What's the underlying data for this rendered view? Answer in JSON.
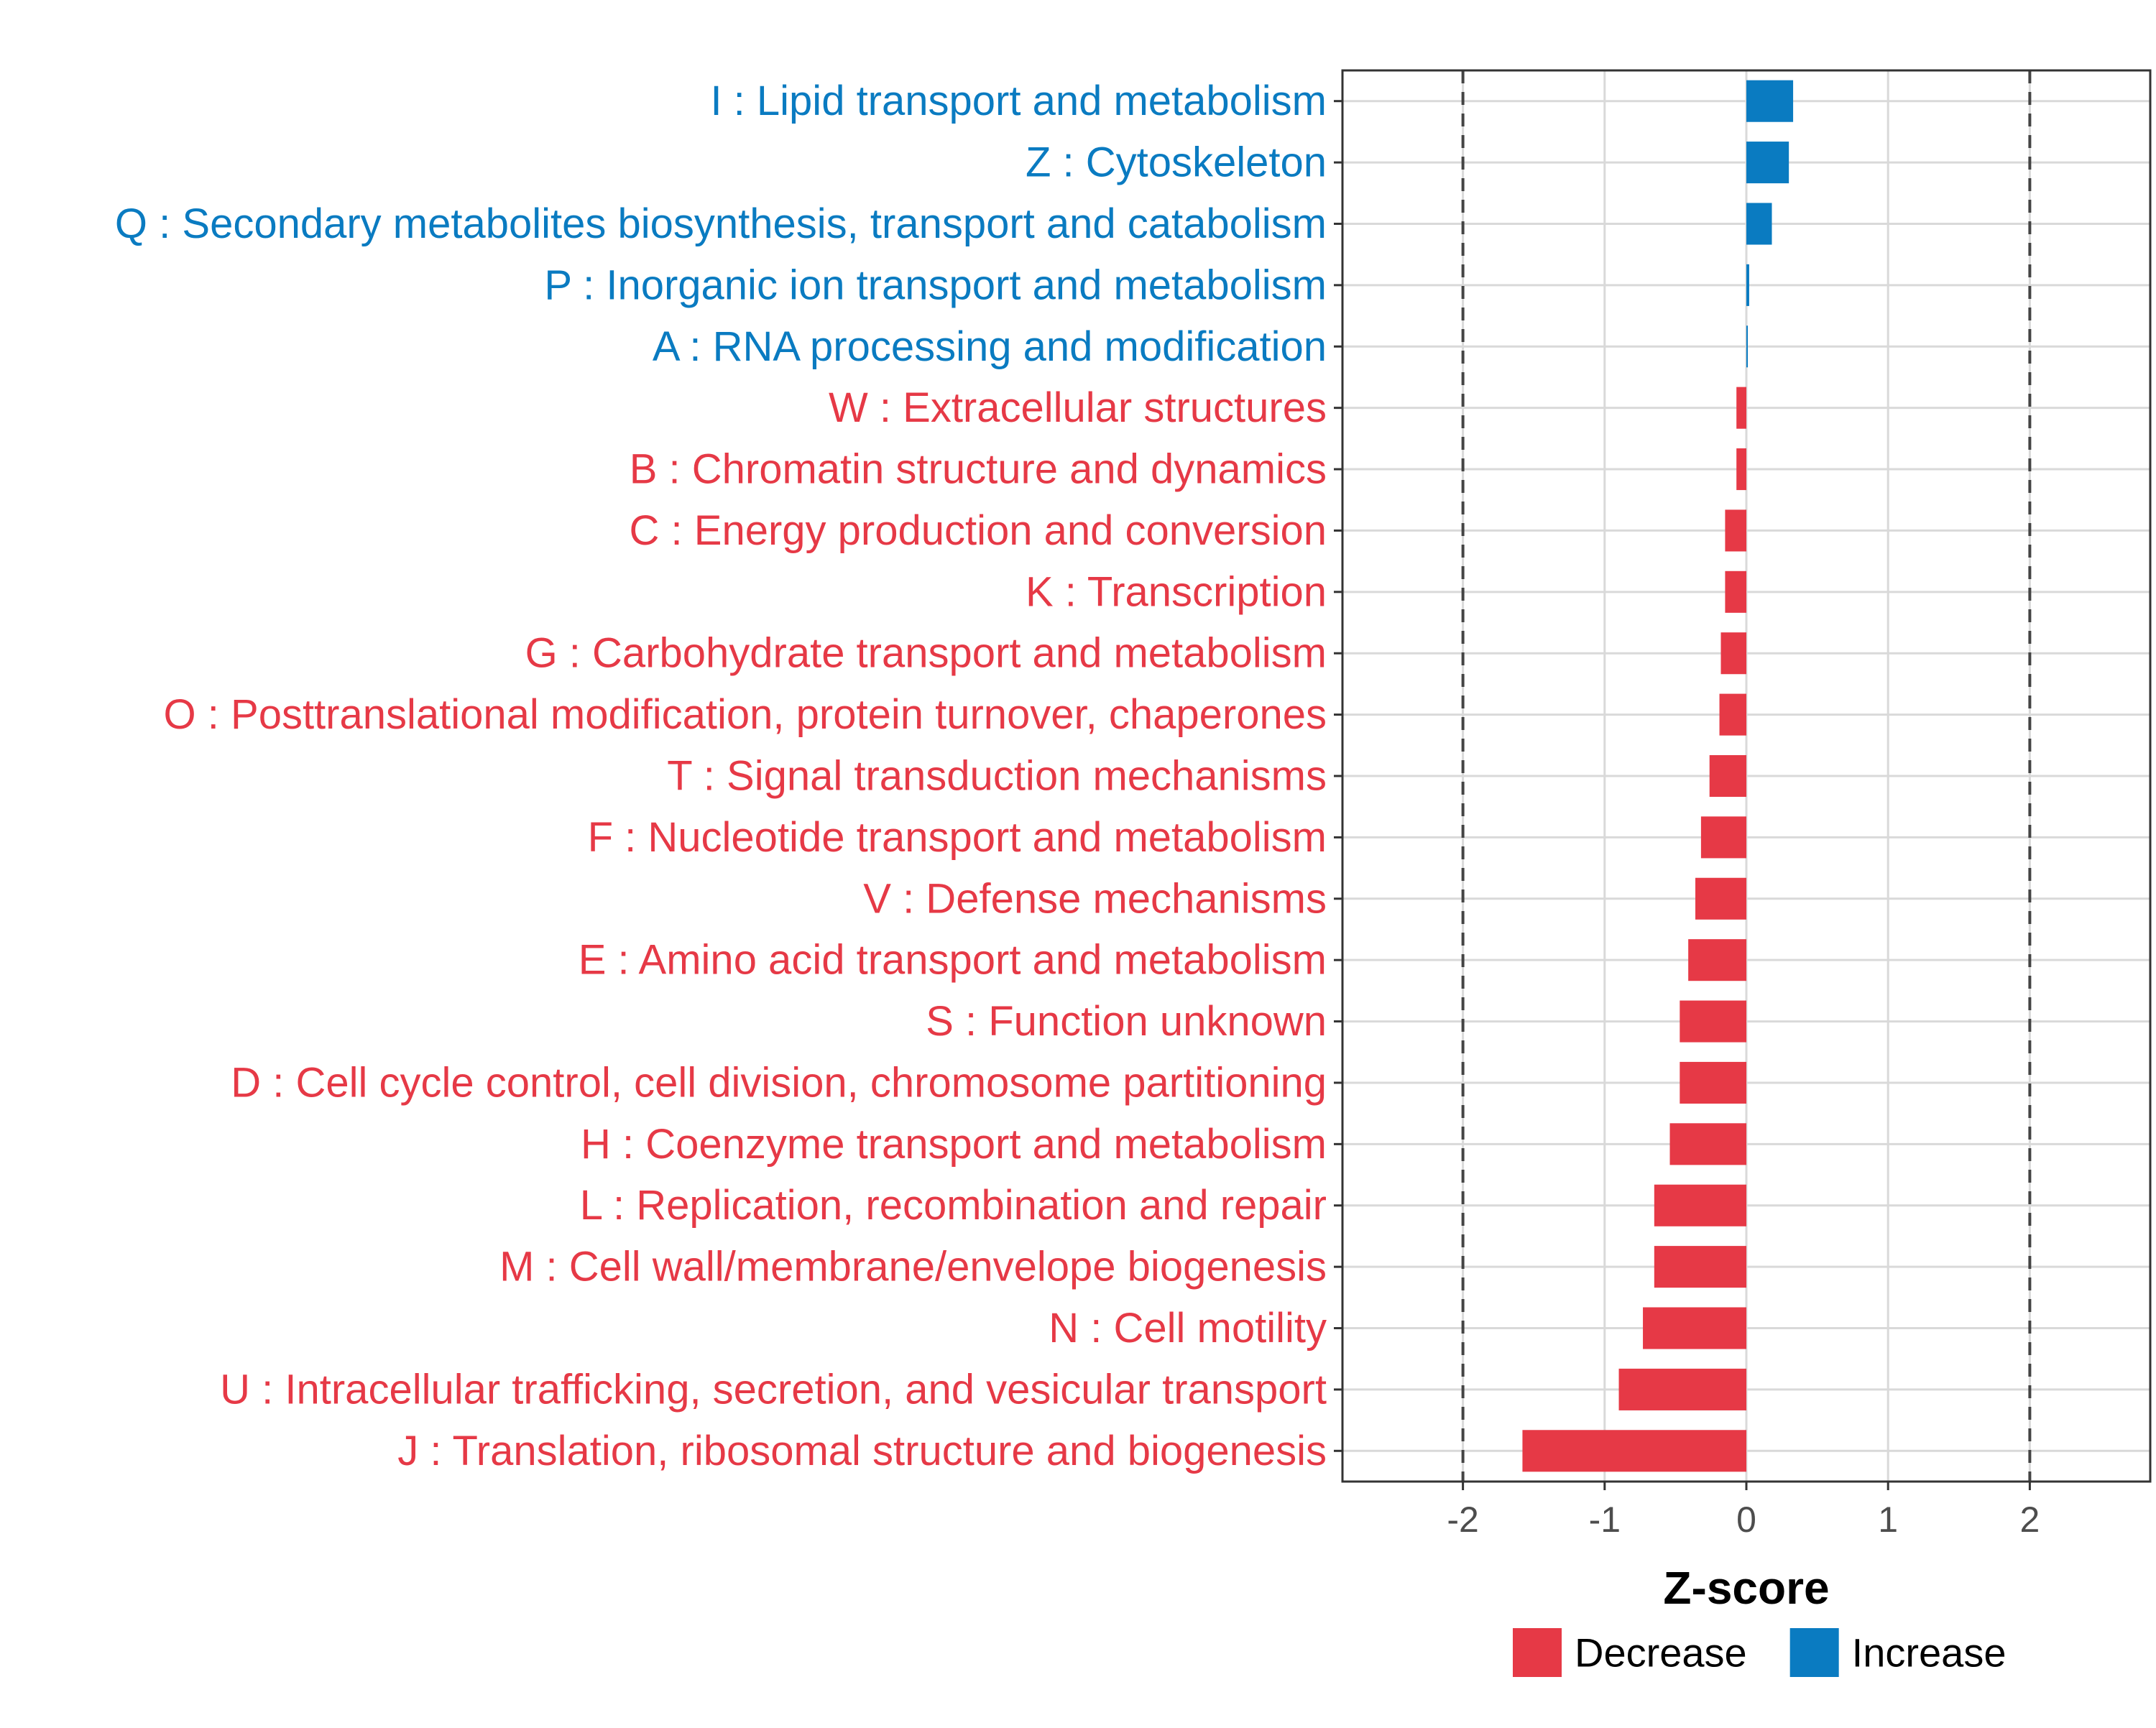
{
  "chart_data": {
    "type": "bar",
    "orientation": "horizontal",
    "xlabel": "Z-score",
    "ylabel": "",
    "xlim": [
      -2.85,
      2.85
    ],
    "xticks": [
      -2,
      -1,
      0,
      1,
      2
    ],
    "xtick_labels": [
      "-2",
      "-1",
      "0",
      "1",
      "2"
    ],
    "reference_lines": [
      -2,
      2
    ],
    "grid": true,
    "legend_position": "bottom",
    "legend": [
      {
        "label": "Decrease",
        "color": "#E63946"
      },
      {
        "label": "Increase",
        "color": "#0A7BC1"
      }
    ],
    "bars": [
      {
        "label": "I : Lipid transport and metabolism",
        "value": 0.33,
        "direction": "Increase"
      },
      {
        "label": "Z : Cytoskeleton",
        "value": 0.3,
        "direction": "Increase"
      },
      {
        "label": "Q : Secondary metabolites biosynthesis, transport and catabolism",
        "value": 0.18,
        "direction": "Increase"
      },
      {
        "label": "P : Inorganic ion transport and metabolism",
        "value": 0.02,
        "direction": "Increase"
      },
      {
        "label": "A : RNA processing and modification",
        "value": 0.01,
        "direction": "Increase"
      },
      {
        "label": "W : Extracellular structures",
        "value": -0.07,
        "direction": "Decrease"
      },
      {
        "label": "B : Chromatin structure and dynamics",
        "value": -0.07,
        "direction": "Decrease"
      },
      {
        "label": "C : Energy production and conversion",
        "value": -0.15,
        "direction": "Decrease"
      },
      {
        "label": "K : Transcription",
        "value": -0.15,
        "direction": "Decrease"
      },
      {
        "label": "G : Carbohydrate transport and metabolism",
        "value": -0.18,
        "direction": "Decrease"
      },
      {
        "label": "O : Posttranslational modification, protein turnover, chaperones",
        "value": -0.19,
        "direction": "Decrease"
      },
      {
        "label": "T : Signal transduction mechanisms",
        "value": -0.26,
        "direction": "Decrease"
      },
      {
        "label": "F : Nucleotide transport and metabolism",
        "value": -0.32,
        "direction": "Decrease"
      },
      {
        "label": "V : Defense mechanisms",
        "value": -0.36,
        "direction": "Decrease"
      },
      {
        "label": "E : Amino acid transport and metabolism",
        "value": -0.41,
        "direction": "Decrease"
      },
      {
        "label": "S : Function unknown",
        "value": -0.47,
        "direction": "Decrease"
      },
      {
        "label": "D : Cell cycle control, cell division, chromosome partitioning",
        "value": -0.47,
        "direction": "Decrease"
      },
      {
        "label": "H : Coenzyme transport and metabolism",
        "value": -0.54,
        "direction": "Decrease"
      },
      {
        "label": "L : Replication, recombination and repair",
        "value": -0.65,
        "direction": "Decrease"
      },
      {
        "label": "M : Cell wall/membrane/envelope biogenesis",
        "value": -0.65,
        "direction": "Decrease"
      },
      {
        "label": "N : Cell motility",
        "value": -0.73,
        "direction": "Decrease"
      },
      {
        "label": "U : Intracellular trafficking, secretion, and vesicular transport",
        "value": -0.9,
        "direction": "Decrease"
      },
      {
        "label": "J : Translation, ribosomal structure and biogenesis",
        "value": -1.58,
        "direction": "Decrease"
      }
    ]
  }
}
